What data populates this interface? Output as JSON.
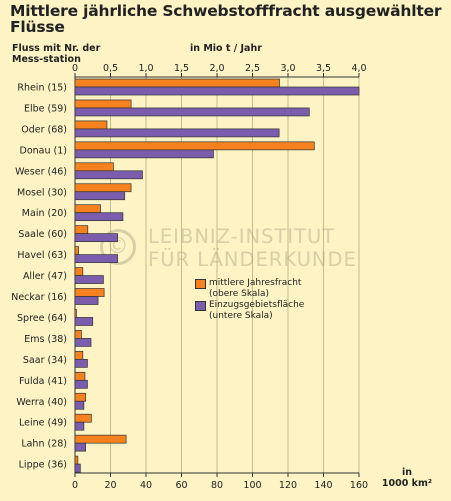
{
  "title": "Mittlere jährliche Schwebstofffracht ausgewählter Flüsse",
  "watermark": {
    "symbol": "©",
    "line1": "LEIBNIZ-INSTITUT",
    "line2": "FÜR LÄNDERKUNDE"
  },
  "chart_data": {
    "type": "bar",
    "orientation": "horizontal",
    "category_header": "Fluss mit Nr. der Mess-station",
    "categories": [
      "Rhein (15)",
      "Elbe (59)",
      "Oder (68)",
      "Donau (1)",
      "Weser (46)",
      "Mosel (30)",
      "Main (20)",
      "Saale (60)",
      "Havel (63)",
      "Aller (47)",
      "Neckar (16)",
      "Spree (64)",
      "Ems (38)",
      "Saar (34)",
      "Fulda (41)",
      "Werra (40)",
      "Leine (49)",
      "Lahn (28)",
      "Lippe (36)"
    ],
    "top_axis": {
      "label": "in Mio t / Jahr",
      "min": 0,
      "max": 4.0,
      "ticks": [
        "0",
        "0,5",
        "1,0",
        "1,5",
        "2,0",
        "2,5",
        "3,0",
        "3,5",
        "4,0"
      ]
    },
    "bottom_axis": {
      "label": "in 1000 km²",
      "label_lines": [
        "in",
        "1000 km²"
      ],
      "min": 0,
      "max": 160,
      "ticks": [
        "0",
        "20",
        "40",
        "60",
        "80",
        "100",
        "120",
        "140",
        "160"
      ]
    },
    "series": [
      {
        "name": "mittlere Jahresfracht (obere Skala)",
        "name_lines": [
          "mittlere Jahresfracht",
          "(obere Skala)"
        ],
        "axis": "top",
        "color": "#f5821f",
        "values": [
          2.88,
          0.79,
          0.45,
          3.37,
          0.54,
          0.79,
          0.36,
          0.18,
          0.05,
          0.11,
          0.41,
          0.02,
          0.09,
          0.11,
          0.14,
          0.15,
          0.23,
          0.72,
          0.04
        ]
      },
      {
        "name": "Einzugsgebietsfläche (untere Skala)",
        "name_lines": [
          "Einzugsgebietsfläche",
          "(untere Skala)"
        ],
        "axis": "bottom",
        "color": "#7b5cad",
        "values": [
          160,
          132,
          115,
          78,
          38,
          28,
          27,
          24,
          24,
          16,
          13,
          10,
          9,
          7,
          7,
          5,
          5,
          6,
          3
        ]
      }
    ],
    "grid": "vertical"
  }
}
